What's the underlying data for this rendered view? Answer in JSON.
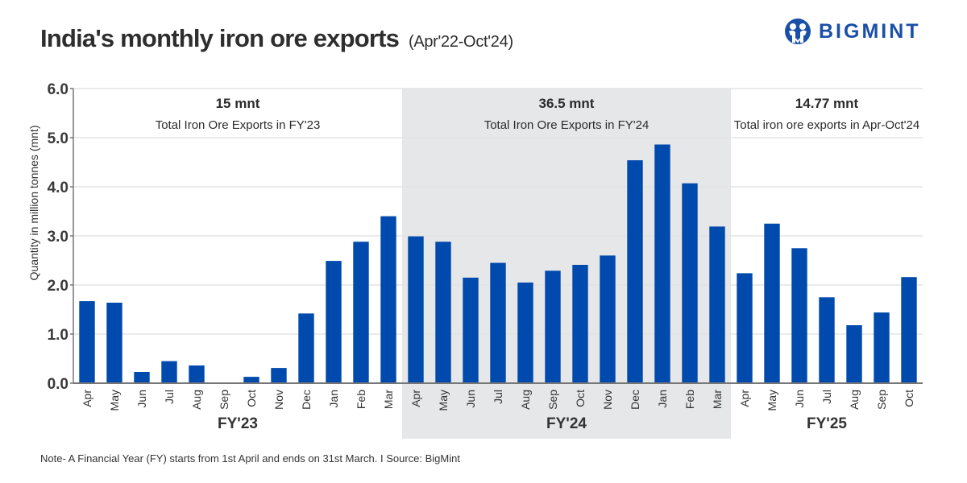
{
  "header": {
    "title": "India's monthly iron ore exports",
    "subtitle": "(Apr'22-Oct'24)"
  },
  "logo": {
    "text": "BIGMINT",
    "icon": "people-circle-icon",
    "color": "#1a4fa8"
  },
  "footer": {
    "note": "Note- A Financial Year (FY) starts from 1st April and ends on 31st March.  I  Source: BigMint"
  },
  "colors": {
    "bar": "#004aad",
    "highlight_band": "#e6e7e9",
    "grid": "#e3e3e3",
    "axis": "#777777"
  },
  "chart_data": {
    "type": "bar",
    "title": "India's monthly iron ore exports (Apr'22-Oct'24)",
    "xlabel": "",
    "ylabel": "Quantity in million tonnes (mnt)",
    "ylim": [
      0,
      6
    ],
    "yticks": [
      "0.0",
      "1.0",
      "2.0",
      "3.0",
      "4.0",
      "5.0",
      "6.0"
    ],
    "grid": true,
    "legend": "none",
    "groups": [
      {
        "label": "FY'23",
        "total": "15 mnt",
        "description": "Total Iron Ore Exports in FY'23",
        "highlighted": false,
        "categories": [
          "Apr",
          "May",
          "Jun",
          "Jul",
          "Aug",
          "Sep",
          "Oct",
          "Nov",
          "Dec",
          "Jan",
          "Feb",
          "Mar"
        ],
        "values": [
          1.67,
          1.64,
          0.23,
          0.45,
          0.36,
          0.0,
          0.13,
          0.31,
          1.42,
          2.49,
          2.88,
          3.4
        ]
      },
      {
        "label": "FY'24",
        "total": "36.5 mnt",
        "description": "Total Iron Ore Exports in FY'24",
        "highlighted": true,
        "categories": [
          "Apr",
          "May",
          "Jun",
          "Jul",
          "Aug",
          "Sep",
          "Oct",
          "Nov",
          "Dec",
          "Jan",
          "Feb",
          "Mar"
        ],
        "values": [
          2.99,
          2.88,
          2.15,
          2.45,
          2.05,
          2.29,
          2.41,
          2.6,
          4.54,
          4.86,
          4.07,
          3.19
        ]
      },
      {
        "label": "FY'25",
        "total": "14.77 mnt",
        "description": "Total iron ore exports in Apr-Oct'24",
        "highlighted": false,
        "categories": [
          "Apr",
          "May",
          "Jun",
          "Jul",
          "Aug",
          "Sep",
          "Oct"
        ],
        "values": [
          2.24,
          3.25,
          2.75,
          1.75,
          1.18,
          1.44,
          2.16
        ]
      }
    ]
  }
}
